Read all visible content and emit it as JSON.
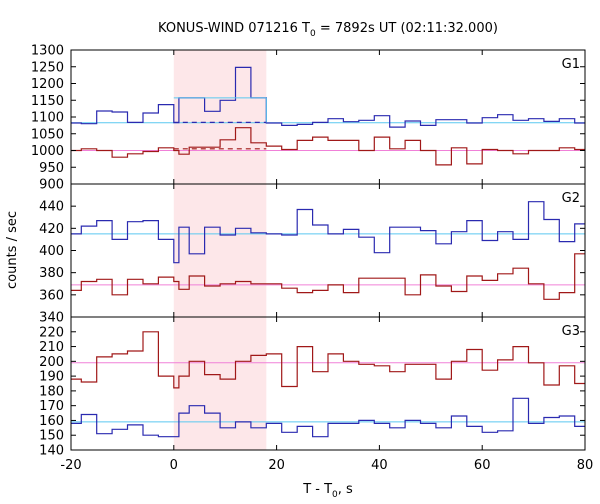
{
  "chart_data": {
    "type": "line",
    "title": "KONUS-WIND 071216 T",
    "title_sub": "0",
    "title_rest": " = 7892s UT (02:11:32.000)",
    "xlabel_main": "T - T",
    "xlabel_sub": "0",
    "xlabel_rest": ", s",
    "ylabel": "counts / sec",
    "xlim": [
      -20,
      80
    ],
    "x_ticks": [
      "-20",
      "0",
      "20",
      "40",
      "60",
      "80"
    ],
    "x_tick_values": [
      -20,
      0,
      20,
      40,
      60,
      80
    ],
    "highlight": {
      "x0": 0,
      "x1": 18,
      "color": "#fde7e9"
    },
    "colors": {
      "blue": "#2a2ab0",
      "red": "#a01818",
      "cyan": "#5ac8f0",
      "pink": "#f080d8"
    },
    "bin_edges": [
      -20,
      -18,
      -15,
      -12,
      -9,
      -6,
      -3,
      0,
      1,
      3,
      6,
      9,
      12,
      15,
      18,
      21,
      24,
      27,
      30,
      33,
      36,
      39,
      42,
      45,
      48,
      51,
      54,
      57,
      60,
      63,
      66,
      69,
      72,
      75,
      78,
      80
    ],
    "panels": [
      {
        "label": "G1",
        "ylim": [
          900,
          1300
        ],
        "y_ticks": [
          "900",
          "950",
          "1000",
          "1050",
          "1100",
          "1150",
          "1200",
          "1250",
          "1300"
        ],
        "y_tick_values": [
          900,
          950,
          1000,
          1050,
          1100,
          1150,
          1200,
          1250,
          1300
        ],
        "series": [
          {
            "values": [
              1082,
              1080,
              1118,
              1115,
              1084,
              1112,
              1137,
              1083,
              1157,
              1157,
              1117,
              1150,
              1248,
              1157,
              1082,
              1075,
              1078,
              1084,
              1095,
              1086,
              1090,
              1104,
              1070,
              1088,
              1075,
              1092,
              1092,
              1082,
              1098,
              1107,
              1090,
              1095,
              1087,
              1095,
              1082
            ]
          },
          {
            "values": [
              1000,
              1005,
              1000,
              980,
              990,
              997,
              1008,
              1000,
              989,
              1010,
              1010,
              1032,
              1068,
              1023,
              1013,
              1003,
              1030,
              1040,
              1030,
              1030,
              1000,
              1040,
              1005,
              1030,
              1000,
              957,
              1008,
              960,
              1003,
              1000,
              990,
              1000,
              1000,
              1008,
              1003
            ]
          }
        ],
        "baselines": [
          1083,
          1000
        ],
        "level_box": {
          "x0": 0,
          "x1": 18,
          "y": 1157
        },
        "dashed": [
          {
            "x0": 0,
            "x1": 18,
            "y": 1084,
            "series": 0
          },
          {
            "x0": 0,
            "x1": 18,
            "y": 1005,
            "series": 1
          }
        ]
      },
      {
        "label": "G2",
        "ylim": [
          340,
          460
        ],
        "y_ticks": [
          "340",
          "360",
          "380",
          "400",
          "420",
          "440"
        ],
        "y_tick_values": [
          340,
          360,
          380,
          400,
          420,
          440
        ],
        "series": [
          {
            "values": [
              415,
              422,
              427,
              410,
              426,
              427,
              410,
              389,
              421,
              397,
              421,
              414,
              420,
              416,
              415,
              414,
              437,
              423,
              415,
              419,
              412,
              398,
              421,
              421,
              418,
              406,
              417,
              427,
              409,
              417,
              410,
              444,
              428,
              408,
              424
            ]
          },
          {
            "values": [
              364,
              372,
              374,
              360,
              374,
              370,
              376,
              372,
              365,
              377,
              368,
              370,
              372,
              370,
              370,
              366,
              362,
              364,
              369,
              362,
              375,
              375,
              375,
              360,
              378,
              368,
              363,
              377,
              373,
              379,
              384,
              370,
              356,
              362,
              397
            ]
          }
        ],
        "baselines": [
          415,
          369
        ]
      },
      {
        "label": "G3",
        "ylim": [
          140,
          230
        ],
        "y_ticks": [
          "140",
          "150",
          "160",
          "170",
          "180",
          "190",
          "200",
          "210",
          "220"
        ],
        "y_tick_values": [
          140,
          150,
          160,
          170,
          180,
          190,
          200,
          210,
          220
        ],
        "series": [
          {
            "values": [
              158,
              164,
              151,
              154,
              157,
              150,
              149,
              149,
              165,
              170,
              165,
              155,
              159,
              155,
              158,
              152,
              156,
              149,
              158,
              158,
              160,
              158,
              155,
              160,
              158,
              155,
              163,
              156,
              152,
              153,
              175,
              158,
              162,
              163,
              156
            ]
          },
          {
            "values": [
              188,
              186,
              203,
              205,
              207,
              220,
              190,
              182,
              190,
              200,
              191,
              188,
              200,
              204,
              205,
              183,
              210,
              193,
              205,
              200,
              198,
              197,
              193,
              198,
              198,
              188,
              200,
              208,
              194,
              201,
              210,
              199,
              184,
              197,
              185
            ]
          }
        ],
        "baselines": [
          159,
          199
        ]
      }
    ]
  }
}
